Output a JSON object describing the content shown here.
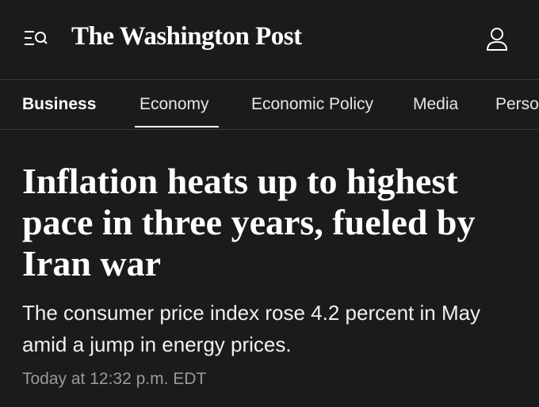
{
  "header": {
    "logo": "The Washington Post"
  },
  "nav": {
    "items": [
      "Business",
      "Economy",
      "Economic Policy",
      "Media",
      "Perso"
    ]
  },
  "article": {
    "headline": "Inflation heats up to highest pace in three years, fueled by Iran war",
    "dek": "The consumer price index rose 4.2 percent in May amid a jump in energy prices.",
    "timestamp": "Today at 12:32 p.m. EDT"
  }
}
